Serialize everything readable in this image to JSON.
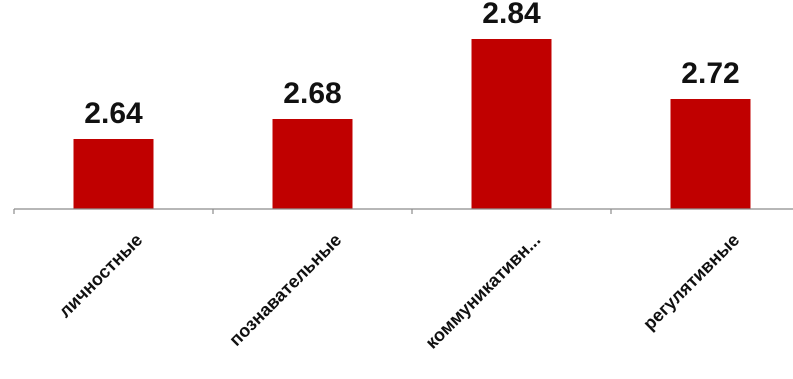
{
  "chart_data": {
    "type": "bar",
    "categories": [
      "личностные",
      "познавательные",
      "коммуникативн...",
      "регулятивные"
    ],
    "values": [
      2.64,
      2.68,
      2.84,
      2.72
    ],
    "value_labels": [
      "2.64",
      "2.68",
      "2.84",
      "2.72"
    ],
    "title": "",
    "xlabel": "",
    "ylabel": "",
    "ylim": [
      2.5,
      2.9
    ],
    "grid": false,
    "legend": "none",
    "bar_color": "#c00000"
  }
}
